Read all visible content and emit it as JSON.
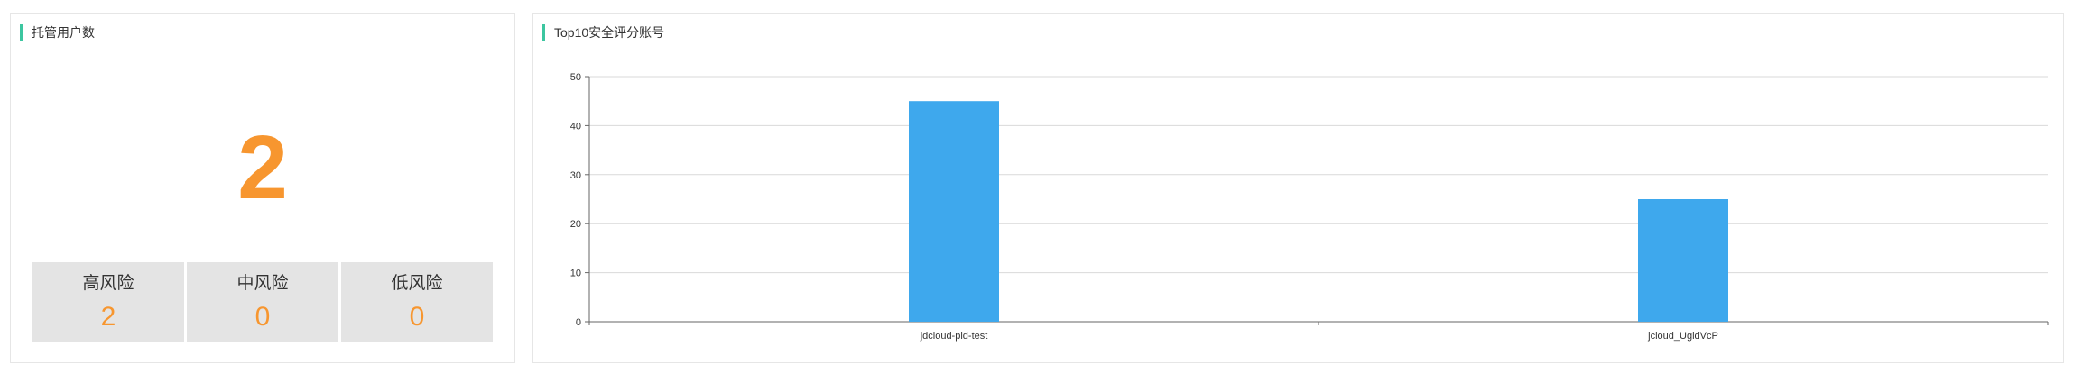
{
  "left_panel": {
    "title": "托管用户数",
    "total": "2",
    "risk_levels": [
      {
        "label": "高风险",
        "value": "2"
      },
      {
        "label": "中风险",
        "value": "0"
      },
      {
        "label": "低风险",
        "value": "0"
      }
    ]
  },
  "right_panel": {
    "title": "Top10安全评分账号"
  },
  "colors": {
    "accent": "#3cc6a0",
    "highlight": "#f7962f",
    "bar": "#3ea8ed",
    "risk_bg": "#e4e4e4"
  },
  "chart_data": {
    "type": "bar",
    "title": "Top10安全评分账号",
    "categories": [
      "jdcloud-pid-test",
      "jcloud_UgldVcP"
    ],
    "values": [
      45,
      25
    ],
    "ylim": [
      0,
      50
    ],
    "yticks": [
      0,
      10,
      20,
      30,
      40,
      50
    ],
    "grid": true
  }
}
